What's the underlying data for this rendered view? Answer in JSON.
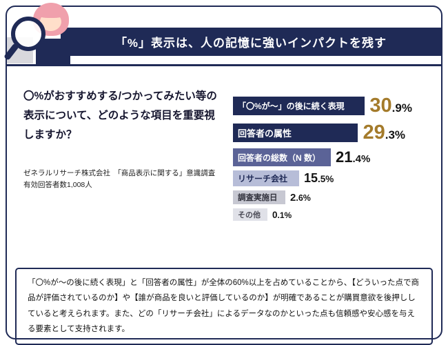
{
  "header": {
    "title": "「%」表示は、人の記憶に強いインパクトを残す"
  },
  "chart_data": {
    "type": "bar",
    "orientation": "horizontal",
    "title": "〇%がおすすめする/つかってみたい等の表示について、どのような項目を重要視しますか？",
    "note": "ゼネラルリサーチ株式会社　「商品表示に関する」意識調査有効回答者数1,008人",
    "categories": [
      "「〇%が～」の後に続く表現",
      "回答者の属性",
      "回答者の総数（N 数）",
      "リサーチ会社",
      "調査実施日",
      "その他"
    ],
    "values": [
      30.9,
      29.3,
      21.4,
      15.5,
      2.6,
      0.1
    ],
    "value_labels": [
      "30.9%",
      "29.3%",
      "21.4%",
      "15.5%",
      "2.6%",
      "0.1%"
    ],
    "values_display": [
      {
        "big": "30",
        "small": ".9%"
      },
      {
        "big": "29",
        "small": ".3%"
      },
      {
        "big": "21",
        "small": ".4%"
      },
      {
        "big": "15",
        "small": ".5%"
      },
      {
        "big": "2",
        "small": ".6%"
      },
      {
        "big": "0",
        "small": ".1%"
      }
    ],
    "xlim": [
      0,
      31
    ],
    "grid": false,
    "legend": "none",
    "bar_colors": [
      "#1f2a56",
      "#1f2a56",
      "#5b6397",
      "#b7bdd8",
      "#c7c8d2",
      "#e0e1e8"
    ],
    "label_colors": [
      "#ffffff",
      "#ffffff",
      "#ffffff",
      "#1f2a56",
      "#33333e",
      "#4a4a55"
    ],
    "value_colors": [
      "#a47b2b",
      "#a47b2b",
      "#141414",
      "#141414",
      "#141414",
      "#141414"
    ]
  },
  "footer": {
    "text": "「〇%が～の後に続く表現」と「回答者の属性」が全体の60%以上を占めていることから、【どういった点で商品が評価されているのか】や【誰が商品を良いと評価しているのか】が明確であることが購買意欲を後押ししていると考えられます。また、どの「リサーチ会社」によるデータなのかといった点も信頼感や安心感を与える要素として支持されます。"
  },
  "colors": {
    "navy": "#1f2a56",
    "gold": "#a47b2b"
  }
}
